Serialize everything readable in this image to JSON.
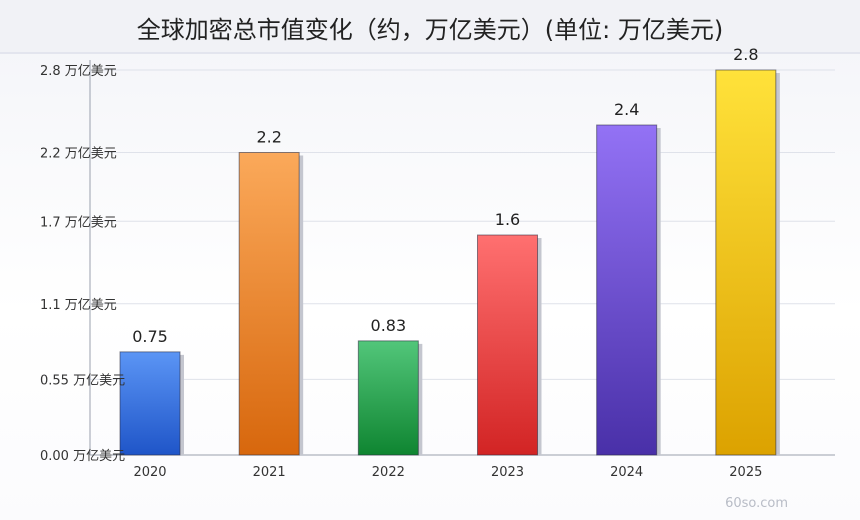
{
  "title": "全球加密总市值变化（约，万亿美元）(单位: 万亿美元)",
  "watermark": "60so.com",
  "chart_data": {
    "type": "bar",
    "title": "全球加密总市值变化（约，万亿美元）(单位: 万亿美元)",
    "categories": [
      "2020",
      "2021",
      "2022",
      "2023",
      "2024",
      "2025"
    ],
    "values": [
      0.75,
      2.2,
      0.83,
      1.6,
      2.4,
      2.8
    ],
    "value_labels": [
      "0.75",
      "2.2",
      "0.83",
      "1.6",
      "2.4",
      "2.8"
    ],
    "ylim": [
      0,
      2.8
    ],
    "yticks": [
      0,
      0.55,
      1.1,
      1.7,
      2.2,
      2.8
    ],
    "ytick_labels": [
      "0.00 万亿美元",
      "0.55 万亿美元",
      "1.1 万亿美元",
      "1.7 万亿美元",
      "2.2 万亿美元",
      "2.8 万亿美元"
    ],
    "grid": true,
    "bar_colors": [
      [
        "#5b95f5",
        "#1f55c8"
      ],
      [
        "#fba95a",
        "#d7670d"
      ],
      [
        "#52c67a",
        "#0f8531"
      ],
      [
        "#ff7070",
        "#d22424"
      ],
      [
        "#9372f5",
        "#4930a8"
      ],
      [
        "#ffe23a",
        "#dca200"
      ]
    ]
  }
}
